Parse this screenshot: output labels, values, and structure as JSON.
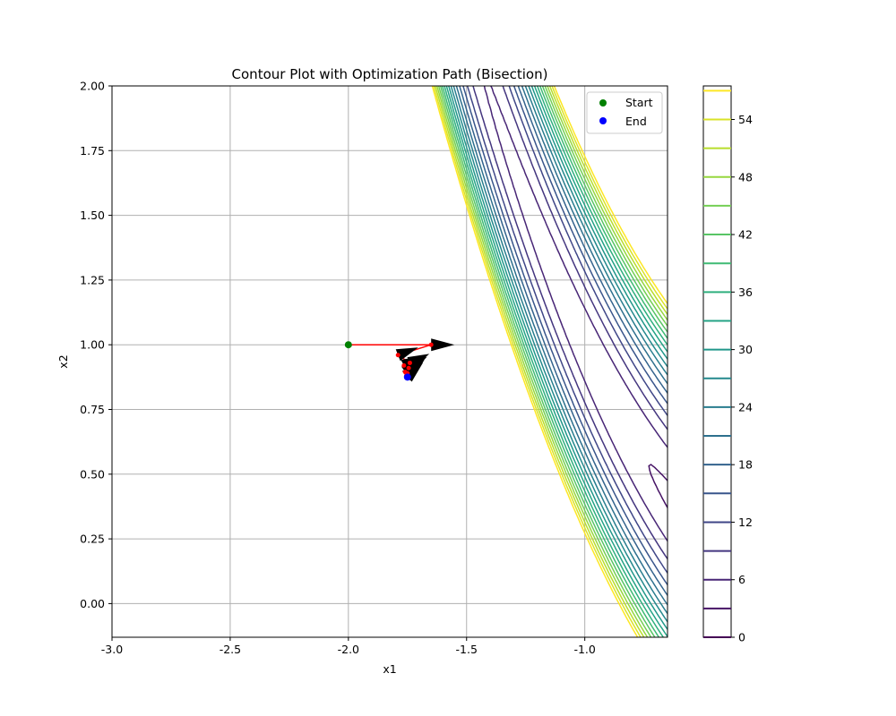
{
  "chart_data": {
    "type": "contour",
    "title": "Contour Plot with Optimization Path (Bisection)",
    "xlabel": "x1",
    "ylabel": "x2",
    "xlim": [
      -3.0,
      -0.65
    ],
    "ylim": [
      -0.13,
      2.0
    ],
    "x_ticks": [
      "-3.0",
      "-2.5",
      "-2.0",
      "-1.5",
      "-1.0"
    ],
    "x_tick_values": [
      -3.0,
      -2.5,
      -2.0,
      -1.5,
      -1.0
    ],
    "y_ticks": [
      "0.00",
      "0.25",
      "0.50",
      "0.75",
      "1.00",
      "1.25",
      "1.50",
      "1.75",
      "2.00"
    ],
    "y_tick_values": [
      0.0,
      0.25,
      0.5,
      0.75,
      1.0,
      1.25,
      1.5,
      1.75,
      2.0
    ],
    "grid": true,
    "colormap": "viridis",
    "contour_levels": [
      0,
      3,
      6,
      9,
      12,
      15,
      18,
      21,
      24,
      27,
      30,
      33,
      36,
      39,
      42,
      45,
      48,
      51,
      54,
      57
    ],
    "colorbar": {
      "ticks": [
        "0",
        "6",
        "12",
        "18",
        "24",
        "30",
        "36",
        "42",
        "48",
        "54"
      ],
      "tick_values": [
        0,
        6,
        12,
        18,
        24,
        30,
        36,
        42,
        48,
        54
      ],
      "range": [
        0,
        57.5
      ]
    },
    "path": {
      "color": "#ff0000",
      "points": [
        [
          -2.0,
          1.0
        ],
        [
          -1.65,
          1.0
        ],
        [
          -1.79,
          0.96
        ],
        [
          -1.74,
          0.93
        ],
        [
          -1.765,
          0.92
        ],
        [
          -1.745,
          0.91
        ],
        [
          -1.76,
          0.895
        ],
        [
          -1.75,
          0.89
        ],
        [
          -1.755,
          0.88
        ],
        [
          -1.75,
          0.875
        ]
      ]
    },
    "markers": [
      {
        "name": "Start",
        "x": -2.0,
        "y": 1.0,
        "color": "#008000"
      },
      {
        "name": "End",
        "x": -1.75,
        "y": 0.875,
        "color": "#0000ff"
      }
    ],
    "legend": {
      "position": "upper right",
      "entries": [
        "Start",
        "End"
      ]
    }
  }
}
